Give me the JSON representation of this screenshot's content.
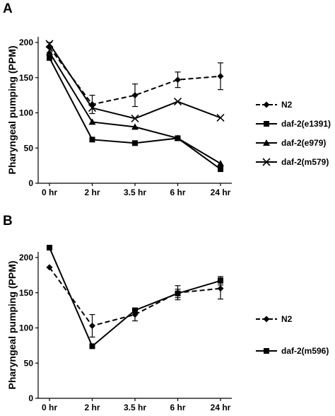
{
  "figure": {
    "panels": [
      "A",
      "B"
    ]
  },
  "chart_data": [
    {
      "panel": "A",
      "type": "line",
      "categories": [
        "0 hr",
        "2 hr",
        "3.5 hr",
        "6 hr",
        "24 hr"
      ],
      "ylabel": "Pharyngeal pumping (PPM)",
      "ylim": [
        0,
        200
      ],
      "yticks": [
        "0",
        "50",
        "100",
        "150",
        "200"
      ],
      "grid": false,
      "legend": "right",
      "series": [
        {
          "name": "N2",
          "marker": "diamond",
          "dash": true,
          "values": [
            193,
            112,
            125,
            147,
            152
          ],
          "errors": [
            7,
            13,
            16,
            11,
            19
          ]
        },
        {
          "name": "daf-2(e1391)",
          "marker": "square",
          "dash": false,
          "values": [
            178,
            62,
            57,
            64,
            20
          ],
          "errors": [
            0,
            0,
            0,
            0,
            0
          ]
        },
        {
          "name": "daf-2(e979)",
          "marker": "triangle",
          "dash": false,
          "values": [
            186,
            87,
            80,
            64,
            28
          ],
          "errors": [
            0,
            0,
            0,
            0,
            0
          ]
        },
        {
          "name": "daf-2(m579)",
          "marker": "x",
          "dash": false,
          "values": [
            198,
            107,
            92,
            116,
            93
          ],
          "errors": [
            0,
            0,
            0,
            0,
            0
          ]
        }
      ]
    },
    {
      "panel": "B",
      "type": "line",
      "categories": [
        "0 hr",
        "2 hr",
        "3.5 hr",
        "6 hr",
        "24 hr"
      ],
      "ylabel": "Pharyngeal pumping (PPM)",
      "ylim": [
        0,
        200
      ],
      "yticks": [
        "0",
        "50",
        "100",
        "150",
        "200"
      ],
      "grid": false,
      "legend": "right",
      "series": [
        {
          "name": "N2",
          "marker": "diamond",
          "dash": true,
          "values": [
            186,
            103,
            119,
            150,
            156
          ],
          "errors": [
            0,
            16,
            9,
            10,
            15
          ]
        },
        {
          "name": "daf-2(m596)",
          "marker": "square",
          "dash": false,
          "values": [
            214,
            74,
            125,
            149,
            167
          ],
          "errors": [
            0,
            0,
            0,
            6,
            6
          ]
        }
      ]
    }
  ]
}
